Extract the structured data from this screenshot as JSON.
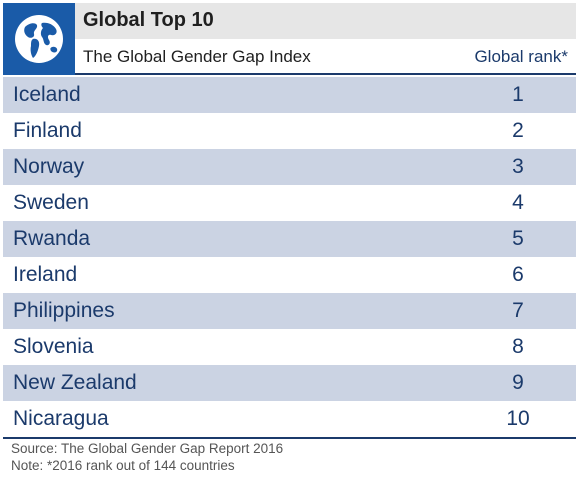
{
  "chart_data": {
    "type": "table",
    "title": "Global Top 10",
    "subtitle": "The Global Gender Gap Index",
    "column_header": "Global rank*",
    "rows": [
      {
        "country": "Iceland",
        "rank": 1
      },
      {
        "country": "Finland",
        "rank": 2
      },
      {
        "country": "Norway",
        "rank": 3
      },
      {
        "country": "Sweden",
        "rank": 4
      },
      {
        "country": "Rwanda",
        "rank": 5
      },
      {
        "country": "Ireland",
        "rank": 6
      },
      {
        "country": "Philippines",
        "rank": 7
      },
      {
        "country": "Slovenia",
        "rank": 8
      },
      {
        "country": "New Zealand",
        "rank": 9
      },
      {
        "country": "Nicaragua",
        "rank": 10
      }
    ],
    "source": "Source: The Global Gender Gap Report 2016",
    "note": "Note: *2016 rank out of 144 countries"
  },
  "logo_icon": "globe-icon",
  "colors": {
    "logo_bg": "#1a5ba8",
    "text_blue": "#1b3a6b",
    "stripe": "#cbd3e3",
    "title_bg": "#e6e6e6"
  }
}
